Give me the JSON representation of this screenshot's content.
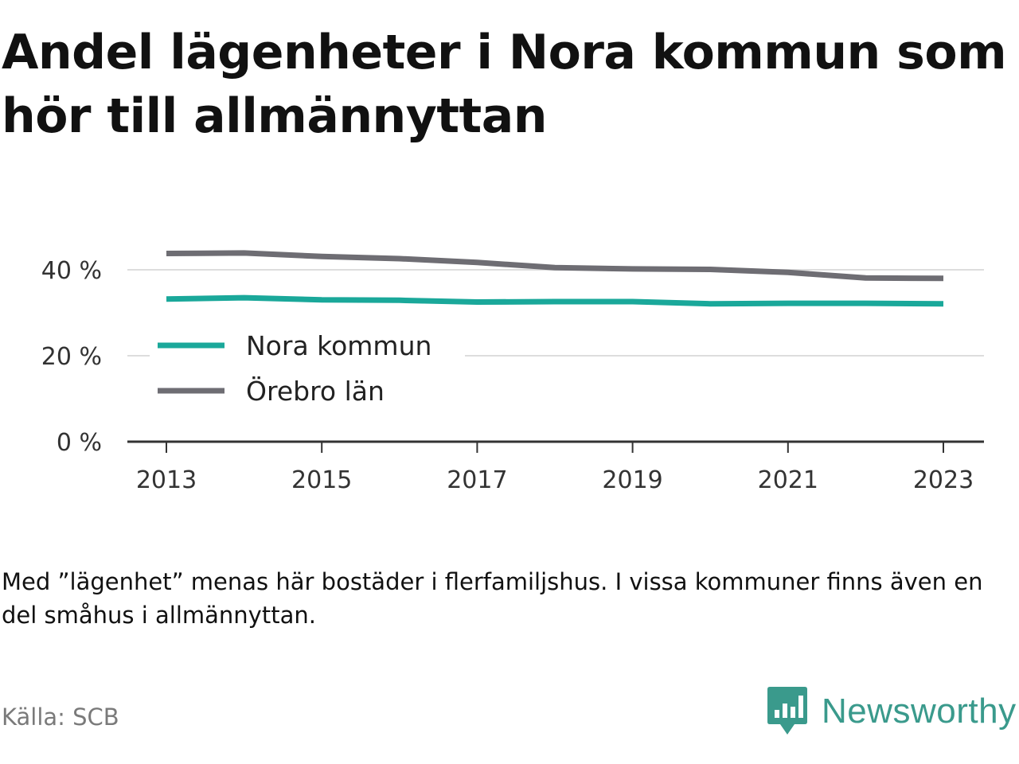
{
  "title": "Andel lägenheter i Nora kommun som hör till allmännyttan",
  "note": "Med ”lägenhet” menas här bostäder i flerfamiljshus. I vissa kommuner finns även en del småhus i allmännyttan.",
  "source": "Källa: SCB",
  "brand": {
    "name": "Newsworthy",
    "icon": "newsworthy-bar-chart-icon",
    "color": "#3a9a8c"
  },
  "chart_data": {
    "type": "line",
    "x": [
      2013,
      2014,
      2015,
      2016,
      2017,
      2018,
      2019,
      2020,
      2021,
      2022,
      2023
    ],
    "x_ticks": [
      2013,
      2015,
      2017,
      2019,
      2021,
      2023
    ],
    "x_tick_labels": [
      "2013",
      "2015",
      "2017",
      "2019",
      "2021",
      "2023"
    ],
    "y_ticks": [
      0,
      20,
      40
    ],
    "y_tick_labels": [
      "0 %",
      "20 %",
      "40 %"
    ],
    "ylim": [
      0,
      44
    ],
    "grid": true,
    "legend_position": "center-left",
    "series": [
      {
        "name": "Nora kommun",
        "color": "#1aa89a",
        "values": [
          33.2,
          33.5,
          33.0,
          32.9,
          32.5,
          32.6,
          32.6,
          32.1,
          32.2,
          32.2,
          32.1
        ]
      },
      {
        "name": "Örebro län",
        "color": "#6e6d73",
        "values": [
          43.8,
          43.9,
          43.1,
          42.6,
          41.7,
          40.5,
          40.2,
          40.1,
          39.4,
          38.1,
          38.0
        ]
      }
    ]
  }
}
